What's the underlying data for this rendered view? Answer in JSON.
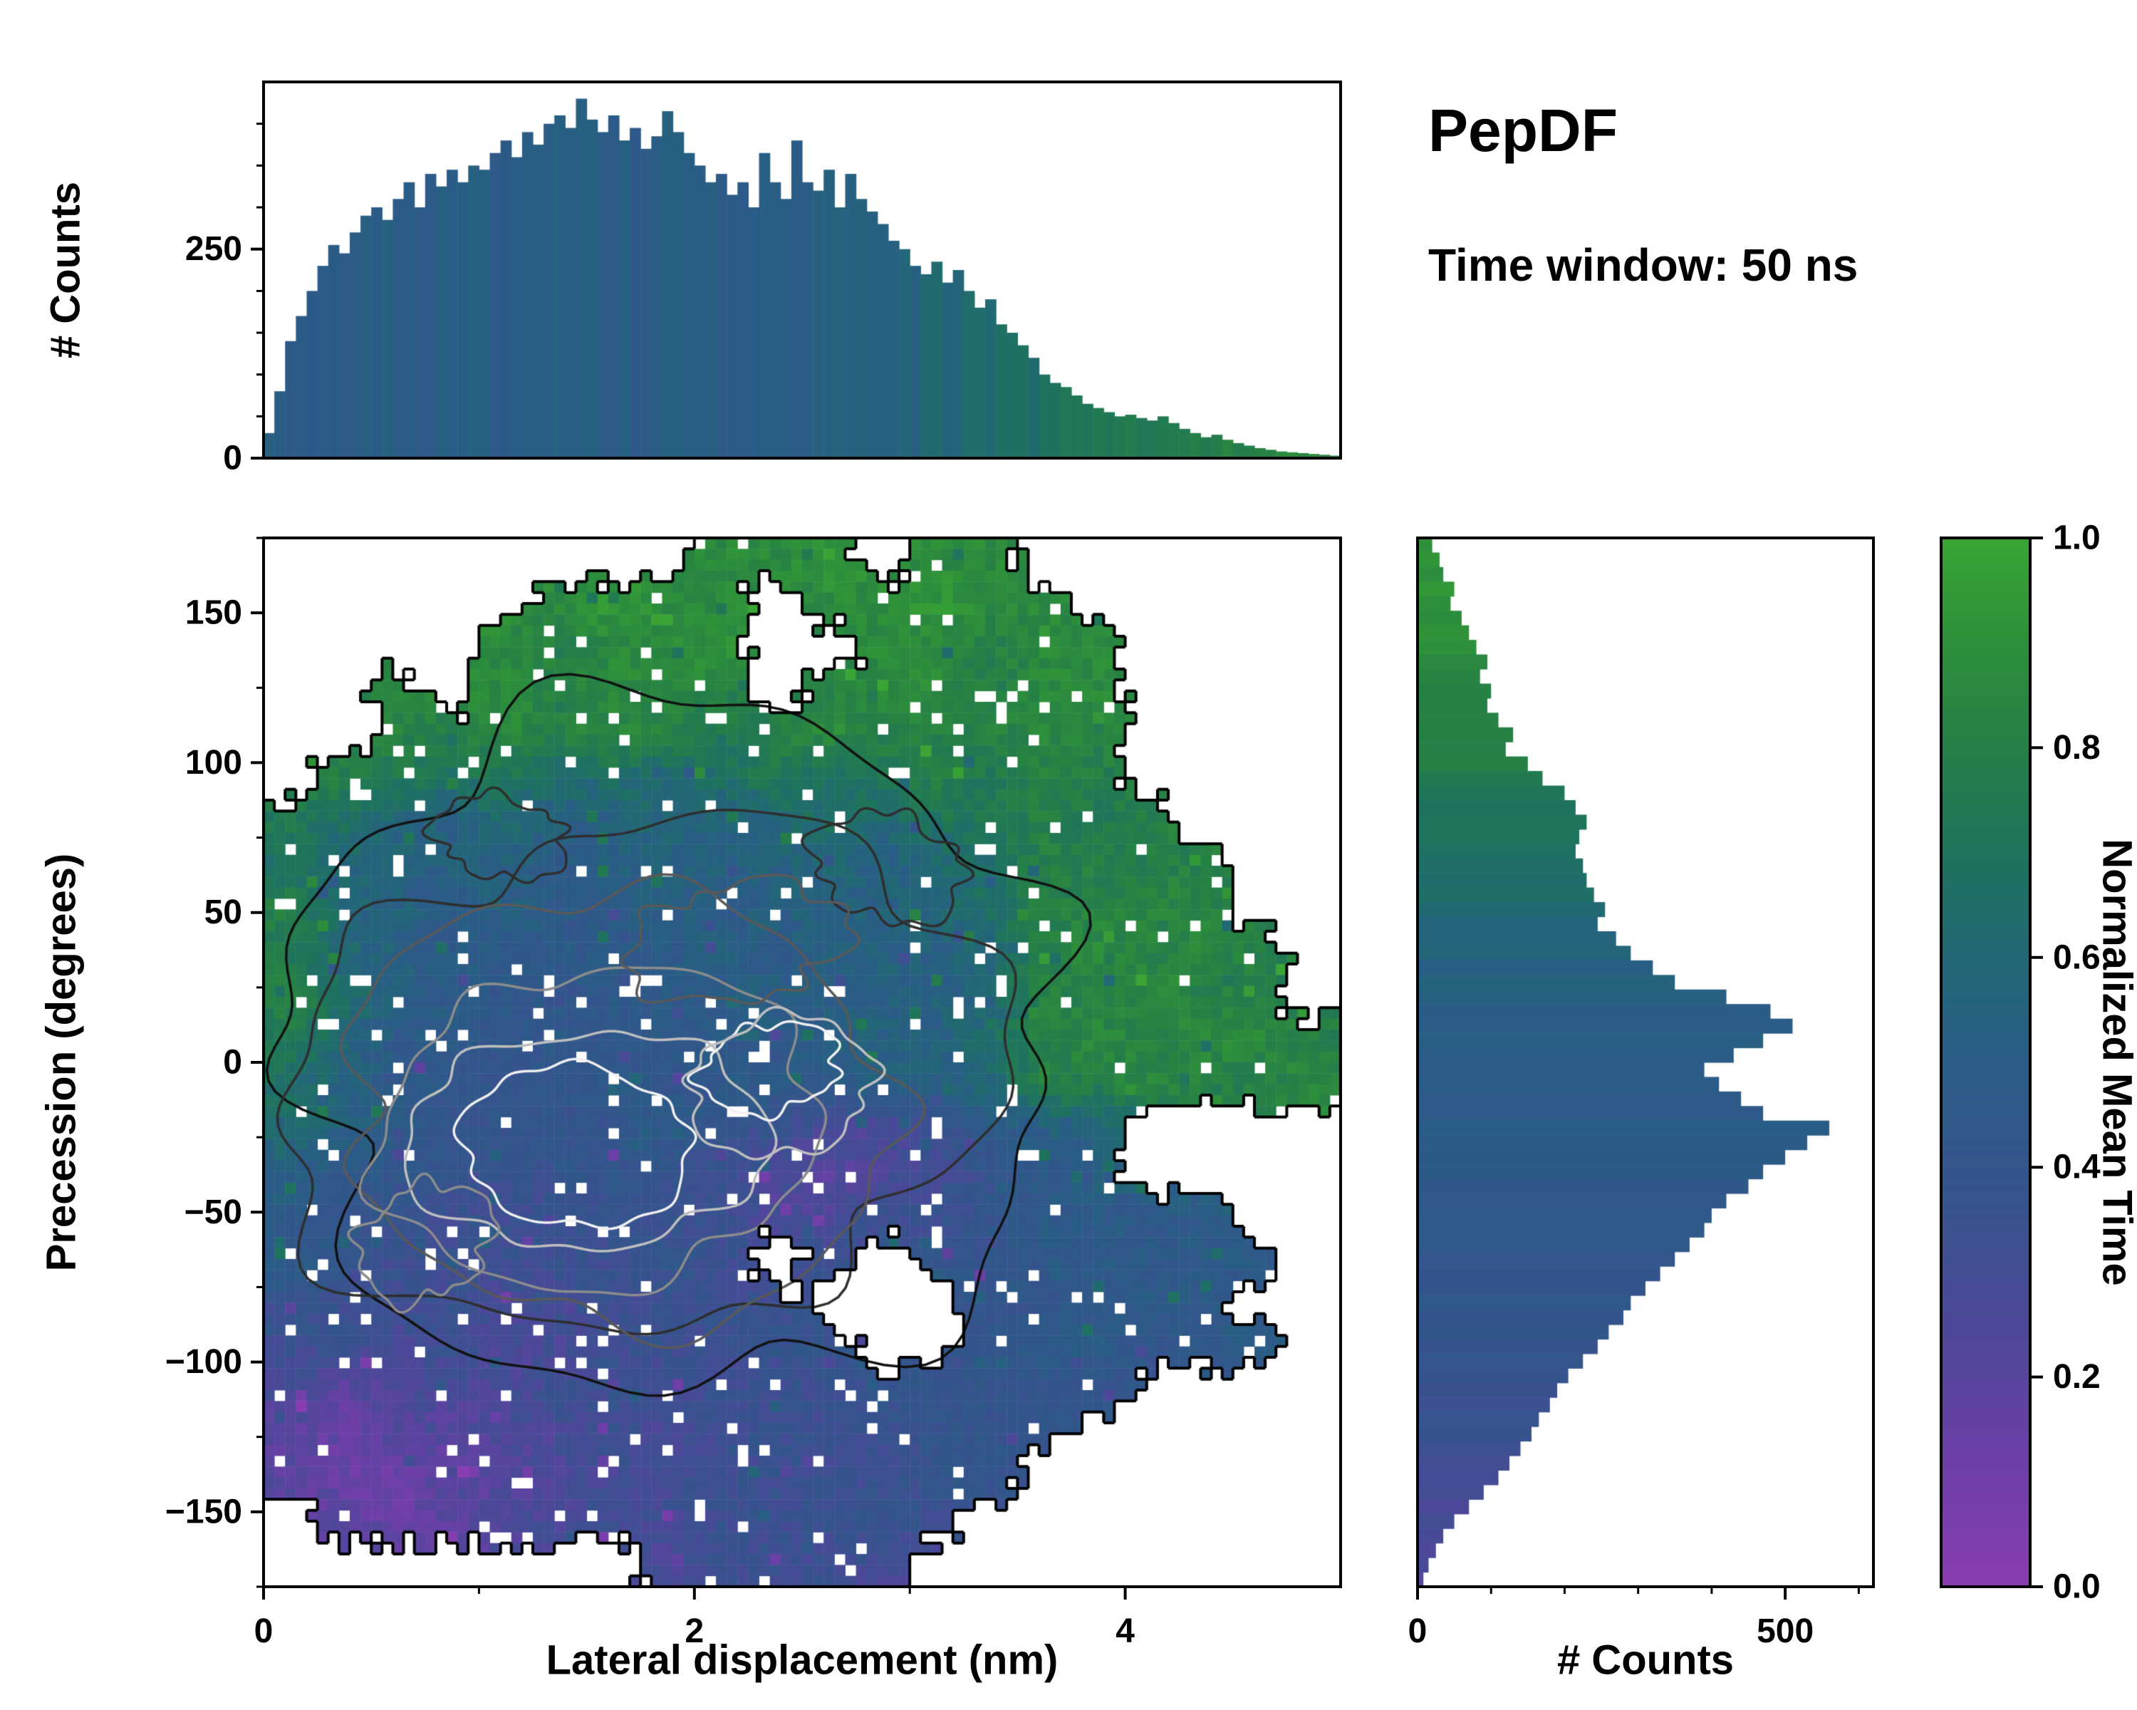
{
  "title": {
    "main": "PepDF",
    "subtitle": "Time window: 50 ns"
  },
  "labels": {
    "top_y": "# Counts",
    "main_y": "Precession (degrees)",
    "main_x": "Lateral displacement (nm)",
    "right_x": "# Counts",
    "cbar": "Normalized Mean Time"
  },
  "colormap": {
    "label": "Normalized Mean Time",
    "stops": [
      [
        0.0,
        "#8a3db2"
      ],
      [
        0.12,
        "#6d3fa7"
      ],
      [
        0.25,
        "#4c4899"
      ],
      [
        0.36,
        "#37538e"
      ],
      [
        0.5,
        "#2a5c86"
      ],
      [
        0.6,
        "#226876"
      ],
      [
        0.7,
        "#1e745c"
      ],
      [
        0.82,
        "#278243"
      ],
      [
        0.92,
        "#2f9339"
      ],
      [
        1.0,
        "#3aa534"
      ]
    ]
  },
  "axes": {
    "top_hist": {
      "ylim": [
        0,
        450
      ],
      "y_major": [
        {
          "v": 0,
          "label": "0"
        },
        {
          "v": 250,
          "label": "250"
        }
      ],
      "y_minor": [
        50,
        100,
        150,
        200,
        300,
        350,
        400
      ]
    },
    "main": {
      "xlim": [
        0,
        5
      ],
      "ylim": [
        -175,
        175
      ],
      "x_major": [
        {
          "v": 0,
          "label": "0"
        },
        {
          "v": 2,
          "label": "2"
        },
        {
          "v": 4,
          "label": "4"
        }
      ],
      "x_minor": [
        1,
        3
      ],
      "y_major": [
        {
          "v": 150,
          "label": "150"
        },
        {
          "v": 100,
          "label": "100"
        },
        {
          "v": 50,
          "label": "50"
        },
        {
          "v": 0,
          "label": "0"
        },
        {
          "v": -50,
          "label": "−50"
        },
        {
          "v": -100,
          "label": "−100"
        },
        {
          "v": -150,
          "label": "−150"
        }
      ],
      "y_minor": [
        175,
        125,
        75,
        25,
        -25,
        -75,
        -125,
        -175
      ]
    },
    "right_hist": {
      "xlim": [
        0,
        620
      ],
      "x_major": [
        {
          "v": 0,
          "label": "0"
        },
        {
          "v": 500,
          "label": "500"
        }
      ],
      "x_minor": [
        100,
        200,
        300,
        400,
        600
      ]
    },
    "colorbar": {
      "ticks": [
        {
          "v": 0.0,
          "label": "0.0"
        },
        {
          "v": 0.2,
          "label": "0.2"
        },
        {
          "v": 0.4,
          "label": "0.4"
        },
        {
          "v": 0.6,
          "label": "0.6"
        },
        {
          "v": 0.8,
          "label": "0.8"
        },
        {
          "v": 1.0,
          "label": "1.0"
        }
      ]
    }
  },
  "chart_data": [
    {
      "type": "bar",
      "role": "top-marginal-histogram",
      "title": "Counts vs lateral displacement, bars colored by normalized mean time",
      "xlabel": "Lateral displacement (nm)",
      "ylabel": "# Counts",
      "xlim": [
        0,
        5
      ],
      "ylim": [
        0,
        450
      ],
      "bin_start": 0.025,
      "bin_width": 0.05,
      "values": [
        30,
        80,
        140,
        170,
        200,
        230,
        255,
        245,
        270,
        290,
        300,
        285,
        310,
        330,
        300,
        340,
        325,
        345,
        330,
        350,
        345,
        365,
        380,
        360,
        390,
        375,
        400,
        410,
        395,
        430,
        405,
        390,
        410,
        380,
        395,
        370,
        385,
        415,
        390,
        365,
        350,
        330,
        340,
        315,
        330,
        300,
        365,
        330,
        310,
        380,
        330,
        320,
        345,
        300,
        340,
        310,
        295,
        280,
        260,
        250,
        230,
        220,
        235,
        210,
        225,
        200,
        180,
        190,
        160,
        150,
        135,
        120,
        100,
        90,
        85,
        75,
        65,
        60,
        55,
        50,
        52,
        48,
        45,
        50,
        42,
        35,
        30,
        25,
        28,
        22,
        18,
        15,
        12,
        10,
        8,
        7,
        6,
        5,
        4,
        3
      ],
      "mean_time_stops": [
        [
          0,
          0.5
        ],
        [
          2.4,
          0.5
        ],
        [
          3.0,
          0.56
        ],
        [
          3.5,
          0.65
        ],
        [
          4.0,
          0.76
        ],
        [
          5.0,
          0.86
        ]
      ]
    },
    {
      "type": "heatmap",
      "role": "joint-distribution",
      "title": "Normalized mean time over (lateral displacement, precession) with count contours",
      "xlabel": "Lateral displacement (nm)",
      "ylabel": "Precession (degrees)",
      "value_label": "Normalized Mean Time",
      "xlim": [
        0,
        5
      ],
      "ylim": [
        -175,
        175
      ],
      "grid_encoding": "24 rows top-to-bottom (y=+175..-175), 20 cols (x=0..5 nm); hex digit = normalized mean time x15; '.' = no data",
      "grid": [
        "........dde.dd......",
        ".....dedd.ddedd.....",
        "....dcdde..ddcdd....",
        "..d.dcddc.cddcdd....",
        "..ccdcdcbcdcccdc....",
        ".cbab9a9ababcbcc....",
        "ba98988989a9abcbc...",
        "a988878888989acccc..",
        "c987877878889accdc..",
        "b9877777878889cdcdc.",
        "ca877677787889ccdcc.",
        "b977676777888acdcddc",
        "a8766676777889ccdccd",
        "9876666765445788....",
        "8766566654344678....",
        "766555655445567777..",
        "765555565.5.6677777.",
        "6555455555...66777..",
        "55454455566..677677.",
        "4344455555566666....",
        "323344545555666.....",
        "32233445555566......",
        ".323445455565.......",
        ".......45554........"
      ],
      "contours": {
        "note": "count-density contours from dark (outer) to white (inner); thick black line is data-region boundary",
        "levels": [
          {
            "color": "#111111",
            "cx": 1.9,
            "cy": 5,
            "rx": 1.95,
            "ry": 105,
            "wobble": 0.22
          },
          {
            "color": "#2e2e2e",
            "cx": 1.75,
            "cy": -5,
            "rx": 1.65,
            "ry": 85,
            "wobble": 0.2
          },
          {
            "color": "#595959",
            "cx": 1.65,
            "cy": -15,
            "rx": 1.35,
            "ry": 68,
            "wobble": 0.18
          },
          {
            "color": "#8c8c8c",
            "cx": 1.55,
            "cy": -22,
            "rx": 1.05,
            "ry": 52,
            "wobble": 0.16
          },
          {
            "color": "#bfbfbf",
            "cx": 1.5,
            "cy": -26,
            "rx": 0.8,
            "ry": 38,
            "wobble": 0.15
          },
          {
            "color": "#f0f0f0",
            "cx": 1.45,
            "cy": -28,
            "rx": 0.55,
            "ry": 26,
            "wobble": 0.14
          }
        ],
        "extra": [
          {
            "color": "#f0f0f0",
            "cx": 2.35,
            "cy": -2,
            "rx": 0.32,
            "ry": 15,
            "wobble": 0.25
          },
          {
            "color": "#bfbfbf",
            "cx": 2.4,
            "cy": -8,
            "rx": 0.45,
            "ry": 22,
            "wobble": 0.22
          },
          {
            "color": "#8c8c8c",
            "cx": 0.75,
            "cy": -60,
            "rx": 0.3,
            "ry": 20,
            "wobble": 0.3
          },
          {
            "color": "#2e2e2e",
            "cx": 2.9,
            "cy": 65,
            "rx": 0.35,
            "ry": 18,
            "wobble": 0.3
          },
          {
            "color": "#2e2e2e",
            "cx": 1.1,
            "cy": 75,
            "rx": 0.3,
            "ry": 14,
            "wobble": 0.3
          },
          {
            "color": "#595959",
            "cx": 2.2,
            "cy": 40,
            "rx": 0.5,
            "ry": 20,
            "wobble": 0.3
          }
        ]
      }
    },
    {
      "type": "bar",
      "role": "right-marginal-histogram",
      "orientation": "horizontal",
      "title": "Counts vs precession, bars colored by normalized mean time",
      "xlabel": "# Counts",
      "ylabel": "Precession (degrees)",
      "xlim": [
        0,
        620
      ],
      "ylim": [
        -180,
        180
      ],
      "bin_start": 177.5,
      "bin_width": -5,
      "values": [
        20,
        30,
        35,
        50,
        45,
        60,
        70,
        80,
        95,
        85,
        100,
        95,
        110,
        130,
        120,
        150,
        170,
        200,
        215,
        230,
        220,
        215,
        225,
        230,
        240,
        255,
        245,
        270,
        290,
        320,
        350,
        420,
        480,
        510,
        470,
        430,
        390,
        410,
        440,
        470,
        560,
        530,
        500,
        470,
        450,
        420,
        400,
        390,
        370,
        350,
        330,
        310,
        290,
        280,
        260,
        245,
        225,
        205,
        190,
        180,
        165,
        155,
        140,
        125,
        110,
        90,
        70,
        50,
        35,
        25,
        15,
        8
      ],
      "mean_time_stops": [
        [
          -180,
          0.26
        ],
        [
          -150,
          0.28
        ],
        [
          -120,
          0.35
        ],
        [
          -80,
          0.42
        ],
        [
          -40,
          0.46
        ],
        [
          0,
          0.5
        ],
        [
          25,
          0.52
        ],
        [
          55,
          0.62
        ],
        [
          85,
          0.7
        ],
        [
          110,
          0.8
        ],
        [
          140,
          0.88
        ],
        [
          180,
          0.93
        ]
      ]
    }
  ]
}
